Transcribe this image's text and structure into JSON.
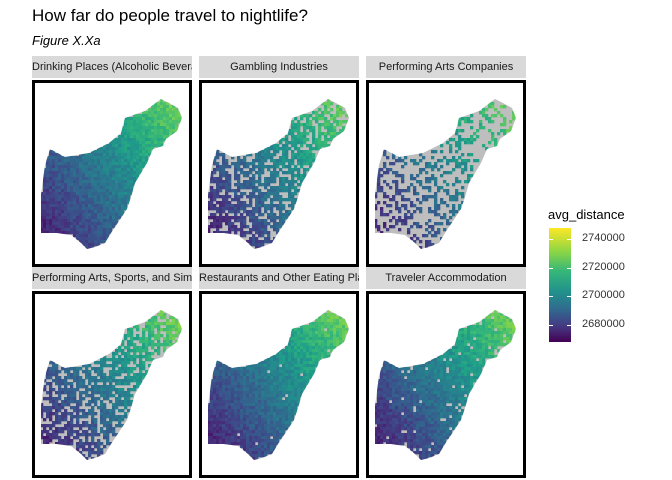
{
  "title": "How far do people travel to nightlife?",
  "subtitle": "Figure X.Xa",
  "chart_data": {
    "type": "heatmap",
    "title": "How far do people travel to nightlife?",
    "subtitle": "Figure X.Xa",
    "legend": {
      "title": "avg_distance",
      "placement": "right",
      "ticks": [
        2740000,
        2720000,
        2700000,
        2680000
      ],
      "tick_labels": [
        "2740000",
        "2720000",
        "2700000",
        "2680000"
      ],
      "range": [
        2668000,
        2748000
      ],
      "colormap": "viridis",
      "missing_color": "#bebebe"
    },
    "panels": [
      {
        "label": "Drinking Places (Alcoholic Beverages)",
        "coverage": 1.0
      },
      {
        "label": "Gambling Industries",
        "coverage": 0.72
      },
      {
        "label": "Performing Arts Companies",
        "coverage": 0.35
      },
      {
        "label": "Performing Arts, Sports, and Similar",
        "coverage": 0.68
      },
      {
        "label": "Restaurants and Other Eating Places",
        "coverage": 0.99
      },
      {
        "label": "Traveler Accommodation",
        "coverage": 0.95
      }
    ]
  }
}
